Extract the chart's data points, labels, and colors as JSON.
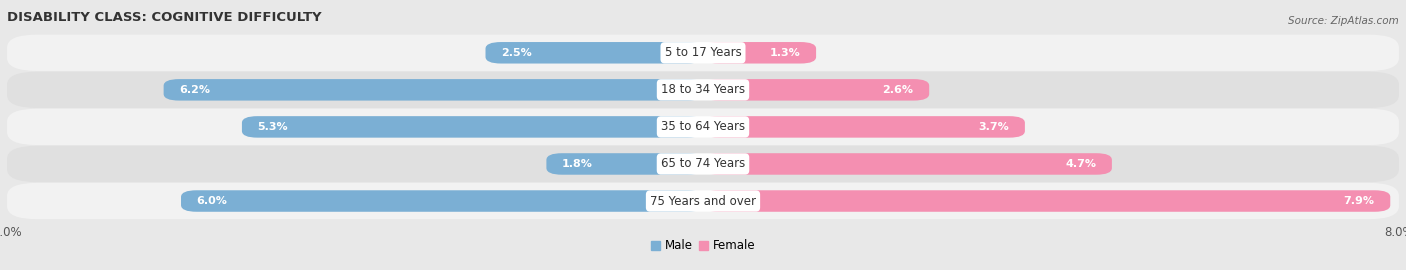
{
  "title": "DISABILITY CLASS: COGNITIVE DIFFICULTY",
  "source": "Source: ZipAtlas.com",
  "categories": [
    "5 to 17 Years",
    "18 to 34 Years",
    "35 to 64 Years",
    "65 to 74 Years",
    "75 Years and over"
  ],
  "male_values": [
    2.5,
    6.2,
    5.3,
    1.8,
    6.0
  ],
  "female_values": [
    1.3,
    2.6,
    3.7,
    4.7,
    7.9
  ],
  "male_color": "#7bafd4",
  "female_color": "#f48fb1",
  "male_label": "Male",
  "female_label": "Female",
  "xlim": 8.0,
  "bar_height": 0.58,
  "background_color": "#e8e8e8",
  "row_bg_colors": [
    "#f2f2f2",
    "#e0e0e0"
  ],
  "title_fontsize": 9.5,
  "label_fontsize": 8.5,
  "value_fontsize": 8.0,
  "tick_fontsize": 8.5,
  "source_fontsize": 7.5,
  "legend_fontsize": 8.5
}
